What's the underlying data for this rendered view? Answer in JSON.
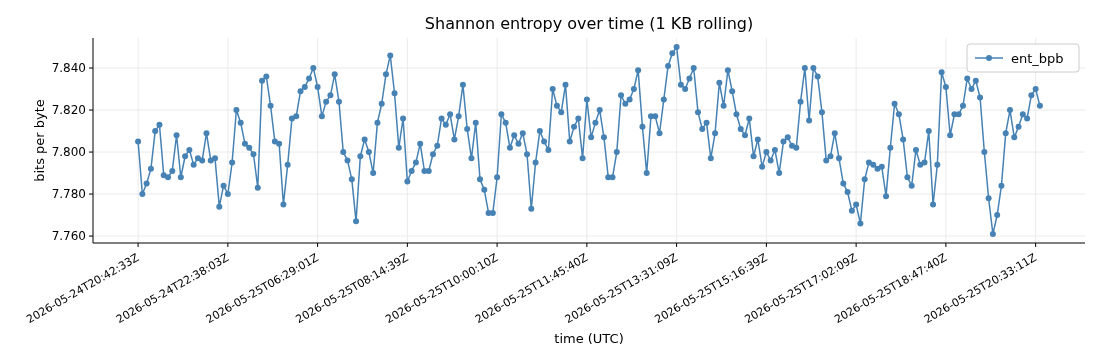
{
  "chart_data": {
    "type": "line",
    "title": "Shannon entropy over time (1 KB rolling)",
    "xlabel": "time (UTC)",
    "ylabel": "bits per byte",
    "categories": [
      "2026-05-24T20:42:33Z",
      null,
      null,
      null,
      null,
      null,
      null,
      null,
      null,
      null,
      null,
      null,
      null,
      null,
      null,
      null,
      null,
      null,
      null,
      null,
      null,
      "2026-05-24T22:38:03Z",
      null,
      null,
      null,
      null,
      null,
      null,
      null,
      null,
      null,
      null,
      null,
      null,
      null,
      null,
      null,
      null,
      null,
      null,
      null,
      null,
      "2026-05-25T06:29:01Z",
      null,
      null,
      null,
      null,
      null,
      null,
      null,
      null,
      null,
      null,
      null,
      null,
      null,
      null,
      null,
      null,
      null,
      null,
      null,
      null,
      "2026-05-25T08:14:39Z",
      null,
      null,
      null,
      null,
      null,
      null,
      null,
      null,
      null,
      null,
      null,
      null,
      null,
      null,
      null,
      null,
      null,
      null,
      null,
      null,
      "2026-05-25T10:00:10Z",
      null,
      null,
      null,
      null,
      null,
      null,
      null,
      null,
      null,
      null,
      null,
      null,
      null,
      null,
      null,
      null,
      null,
      null,
      null,
      null,
      "2026-05-25T11:45:40Z",
      null,
      null,
      null,
      null,
      null,
      null,
      null,
      null,
      null,
      null,
      null,
      null,
      null,
      null,
      null,
      null,
      null,
      null,
      null,
      null,
      "2026-05-25T13:31:09Z",
      null,
      null,
      null,
      null,
      null,
      null,
      null,
      null,
      null,
      null,
      null,
      null,
      null,
      null,
      null,
      null,
      null,
      null,
      null,
      null,
      "2026-05-25T15:16:39Z",
      null,
      null,
      null,
      null,
      null,
      null,
      null,
      null,
      null,
      null,
      null,
      null,
      null,
      null,
      null,
      null,
      null,
      null,
      null,
      null,
      "2026-05-25T17:02:09Z",
      null,
      null,
      null,
      null,
      null,
      null,
      null,
      null,
      null,
      null,
      null,
      null,
      null,
      null,
      null,
      null,
      null,
      null,
      null,
      null,
      "2026-05-25T18:47:40Z",
      null,
      null,
      null,
      null,
      null,
      null,
      null,
      null,
      null,
      null,
      null,
      null,
      null,
      null,
      null,
      null,
      null,
      null,
      null,
      null,
      "2026-05-25T20:33:11Z",
      null
    ],
    "series": [
      {
        "name": "ent_bpb",
        "color": "#4682b4",
        "values": [
          7.805,
          7.78,
          7.785,
          7.792,
          7.81,
          7.813,
          7.789,
          7.788,
          7.791,
          7.808,
          7.788,
          7.798,
          7.801,
          7.794,
          7.797,
          7.796,
          7.809,
          7.796,
          7.797,
          7.774,
          7.784,
          7.78,
          7.795,
          7.82,
          7.814,
          7.804,
          7.802,
          7.799,
          7.783,
          7.834,
          7.836,
          7.822,
          7.805,
          7.804,
          7.775,
          7.794,
          7.816,
          7.817,
          7.829,
          7.831,
          7.835,
          7.84,
          7.831,
          7.817,
          7.824,
          7.827,
          7.837,
          7.824,
          7.8,
          7.796,
          7.787,
          7.767,
          7.798,
          7.806,
          7.8,
          7.79,
          7.814,
          7.823,
          7.837,
          7.846,
          7.828,
          7.802,
          7.816,
          7.786,
          7.791,
          7.795,
          7.804,
          7.791,
          7.791,
          7.799,
          7.803,
          7.816,
          7.813,
          7.818,
          7.806,
          7.817,
          7.832,
          7.811,
          7.797,
          7.814,
          7.787,
          7.782,
          7.771,
          7.771,
          7.788,
          7.818,
          7.814,
          7.802,
          7.808,
          7.804,
          7.809,
          7.799,
          7.773,
          7.795,
          7.81,
          7.805,
          7.801,
          7.83,
          7.822,
          7.819,
          7.832,
          7.805,
          7.812,
          7.816,
          7.797,
          7.825,
          7.807,
          7.814,
          7.82,
          7.807,
          7.788,
          7.788,
          7.8,
          7.827,
          7.823,
          7.825,
          7.83,
          7.839,
          7.812,
          7.79,
          7.817,
          7.817,
          7.809,
          7.825,
          7.841,
          7.847,
          7.85,
          7.832,
          7.83,
          7.835,
          7.84,
          7.819,
          7.811,
          7.814,
          7.797,
          7.809,
          7.833,
          7.822,
          7.839,
          7.829,
          7.818,
          7.811,
          7.808,
          7.816,
          7.798,
          7.806,
          7.793,
          7.8,
          7.796,
          7.801,
          7.79,
          7.805,
          7.807,
          7.803,
          7.802,
          7.824,
          7.84,
          7.815,
          7.84,
          7.836,
          7.819,
          7.796,
          7.798,
          7.809,
          7.797,
          7.785,
          7.781,
          7.772,
          7.775,
          7.766,
          7.787,
          7.795,
          7.794,
          7.792,
          7.793,
          7.779,
          7.802,
          7.823,
          7.818,
          7.806,
          7.788,
          7.784,
          7.801,
          7.794,
          7.795,
          7.81,
          7.775,
          7.794,
          7.838,
          7.831,
          7.808,
          7.818,
          7.818,
          7.822,
          7.835,
          7.83,
          7.834,
          7.826,
          7.8,
          7.778,
          7.761,
          7.77,
          7.784,
          7.809,
          7.82,
          7.807,
          7.812,
          7.818,
          7.816,
          7.827,
          7.83,
          7.822
        ]
      }
    ],
    "ylim": [
      7.7567,
      7.8543
    ],
    "yticks": [
      {
        "value": 7.76,
        "label": "7.760"
      },
      {
        "value": 7.78,
        "label": "7.780"
      },
      {
        "value": 7.8,
        "label": "7.800"
      },
      {
        "value": 7.82,
        "label": "7.820"
      },
      {
        "value": 7.84,
        "label": "7.840"
      }
    ],
    "grid": true,
    "legend": "top right",
    "marker": "circle",
    "line_style": "solid"
  }
}
